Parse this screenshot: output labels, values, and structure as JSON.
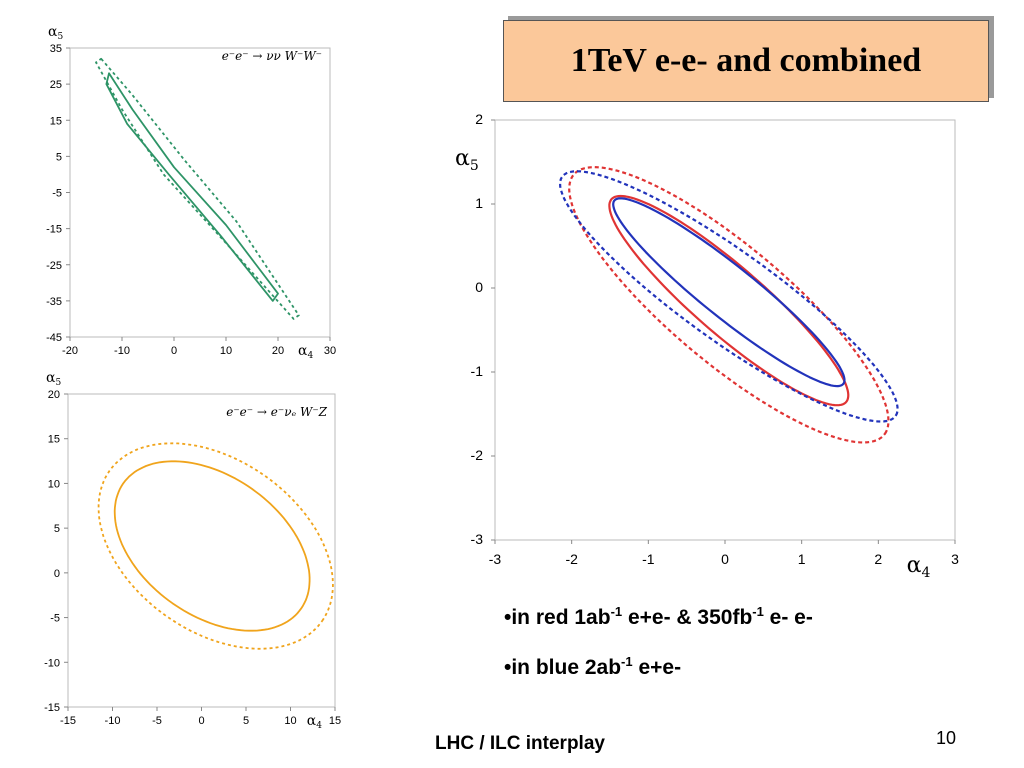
{
  "slide": {
    "title": "1TeV e-e- and combined",
    "legend_red_prefix": "•in red 1ab",
    "legend_red_sup1": "-1",
    "legend_red_mid": " e+e- & 350fb",
    "legend_red_sup2": "-1",
    "legend_red_suffix": " e- e-",
    "legend_blue_prefix": "•in blue 2ab",
    "legend_blue_sup": "-1",
    "legend_blue_suffix": " e+e-",
    "footer": "LHC / ILC interplay",
    "page_number": "10"
  },
  "colors": {
    "green": "#2e9467",
    "orange": "#f0a41c",
    "red": "#e03434",
    "blue": "#2233bb",
    "title_bg": "#fbc89a"
  },
  "chart_data": [
    {
      "type": "line",
      "process_label": "e⁻e⁻ → νν W⁻W⁻",
      "xlabel": "α4",
      "ylabel": "α5",
      "xlim": [
        -20,
        30
      ],
      "ylim": [
        -45,
        35
      ],
      "xticks": [
        -20,
        -10,
        0,
        10,
        20,
        30
      ],
      "yticks": [
        35,
        25,
        15,
        5,
        -5,
        -15,
        -25,
        -35,
        -45
      ],
      "series": [
        {
          "style": "solid",
          "color": "#2e9467",
          "points": [
            [
              -12.5,
              28
            ],
            [
              -8,
              18
            ],
            [
              0,
              2
            ],
            [
              10,
              -14
            ],
            [
              20,
              -33
            ],
            [
              19,
              -35
            ],
            [
              9,
              -17
            ],
            [
              -1,
              0
            ],
            [
              -9,
              14
            ],
            [
              -13,
              25
            ],
            [
              -12.5,
              28
            ]
          ]
        },
        {
          "style": "dashed",
          "color": "#2e9467",
          "points": [
            [
              -14,
              32
            ],
            [
              -8,
              22
            ],
            [
              2,
              4
            ],
            [
              12,
              -13
            ],
            [
              24,
              -39
            ],
            [
              23,
              -40
            ],
            [
              10,
              -19
            ],
            [
              -2,
              0
            ],
            [
              -10,
              18
            ],
            [
              -15,
              31
            ],
            [
              -14,
              32
            ]
          ]
        }
      ]
    },
    {
      "type": "line",
      "process_label": "e⁻e⁻ → e⁻νₑ W⁻Z",
      "xlabel": "α4",
      "ylabel": "α5",
      "xlim": [
        -15,
        15
      ],
      "ylim": [
        -15,
        20
      ],
      "xticks": [
        -15,
        -10,
        -5,
        0,
        5,
        10,
        15
      ],
      "yticks": [
        20,
        15,
        10,
        5,
        0,
        -5,
        -10,
        -15
      ],
      "series": [
        {
          "style": "solid",
          "color": "#f0a41c",
          "center": [
            1.2,
            3.0
          ],
          "semi_major": 12.2,
          "semi_minor": 7.8,
          "angle_deg": -35
        },
        {
          "style": "dashed",
          "color": "#f0a41c",
          "center": [
            1.6,
            3.0
          ],
          "semi_major": 14.6,
          "semi_minor": 9.6,
          "angle_deg": -35
        }
      ]
    },
    {
      "type": "line",
      "xlabel": "α4",
      "ylabel": "α5",
      "xlim": [
        -3,
        3
      ],
      "ylim": [
        -3,
        2
      ],
      "xticks": [
        -3,
        -2,
        -1,
        0,
        1,
        2,
        3
      ],
      "yticks": [
        2,
        1,
        0,
        -1,
        -2,
        -3
      ],
      "series": [
        {
          "style": "solid",
          "color": "#e03434",
          "center": [
            0.05,
            -0.15
          ],
          "semi_major": 1.95,
          "semi_minor": 0.42,
          "angle_deg": -38
        },
        {
          "style": "dashed",
          "color": "#e03434",
          "center": [
            0.05,
            -0.2
          ],
          "semi_major": 2.55,
          "semi_minor": 0.72,
          "angle_deg": -37
        },
        {
          "style": "solid",
          "color": "#2233bb",
          "center": [
            0.05,
            -0.05
          ],
          "semi_major": 1.85,
          "semi_minor": 0.32,
          "angle_deg": -36
        },
        {
          "style": "dashed",
          "color": "#2233bb",
          "center": [
            0.05,
            -0.1
          ],
          "semi_major": 2.6,
          "semi_minor": 0.55,
          "angle_deg": -33
        }
      ]
    }
  ]
}
